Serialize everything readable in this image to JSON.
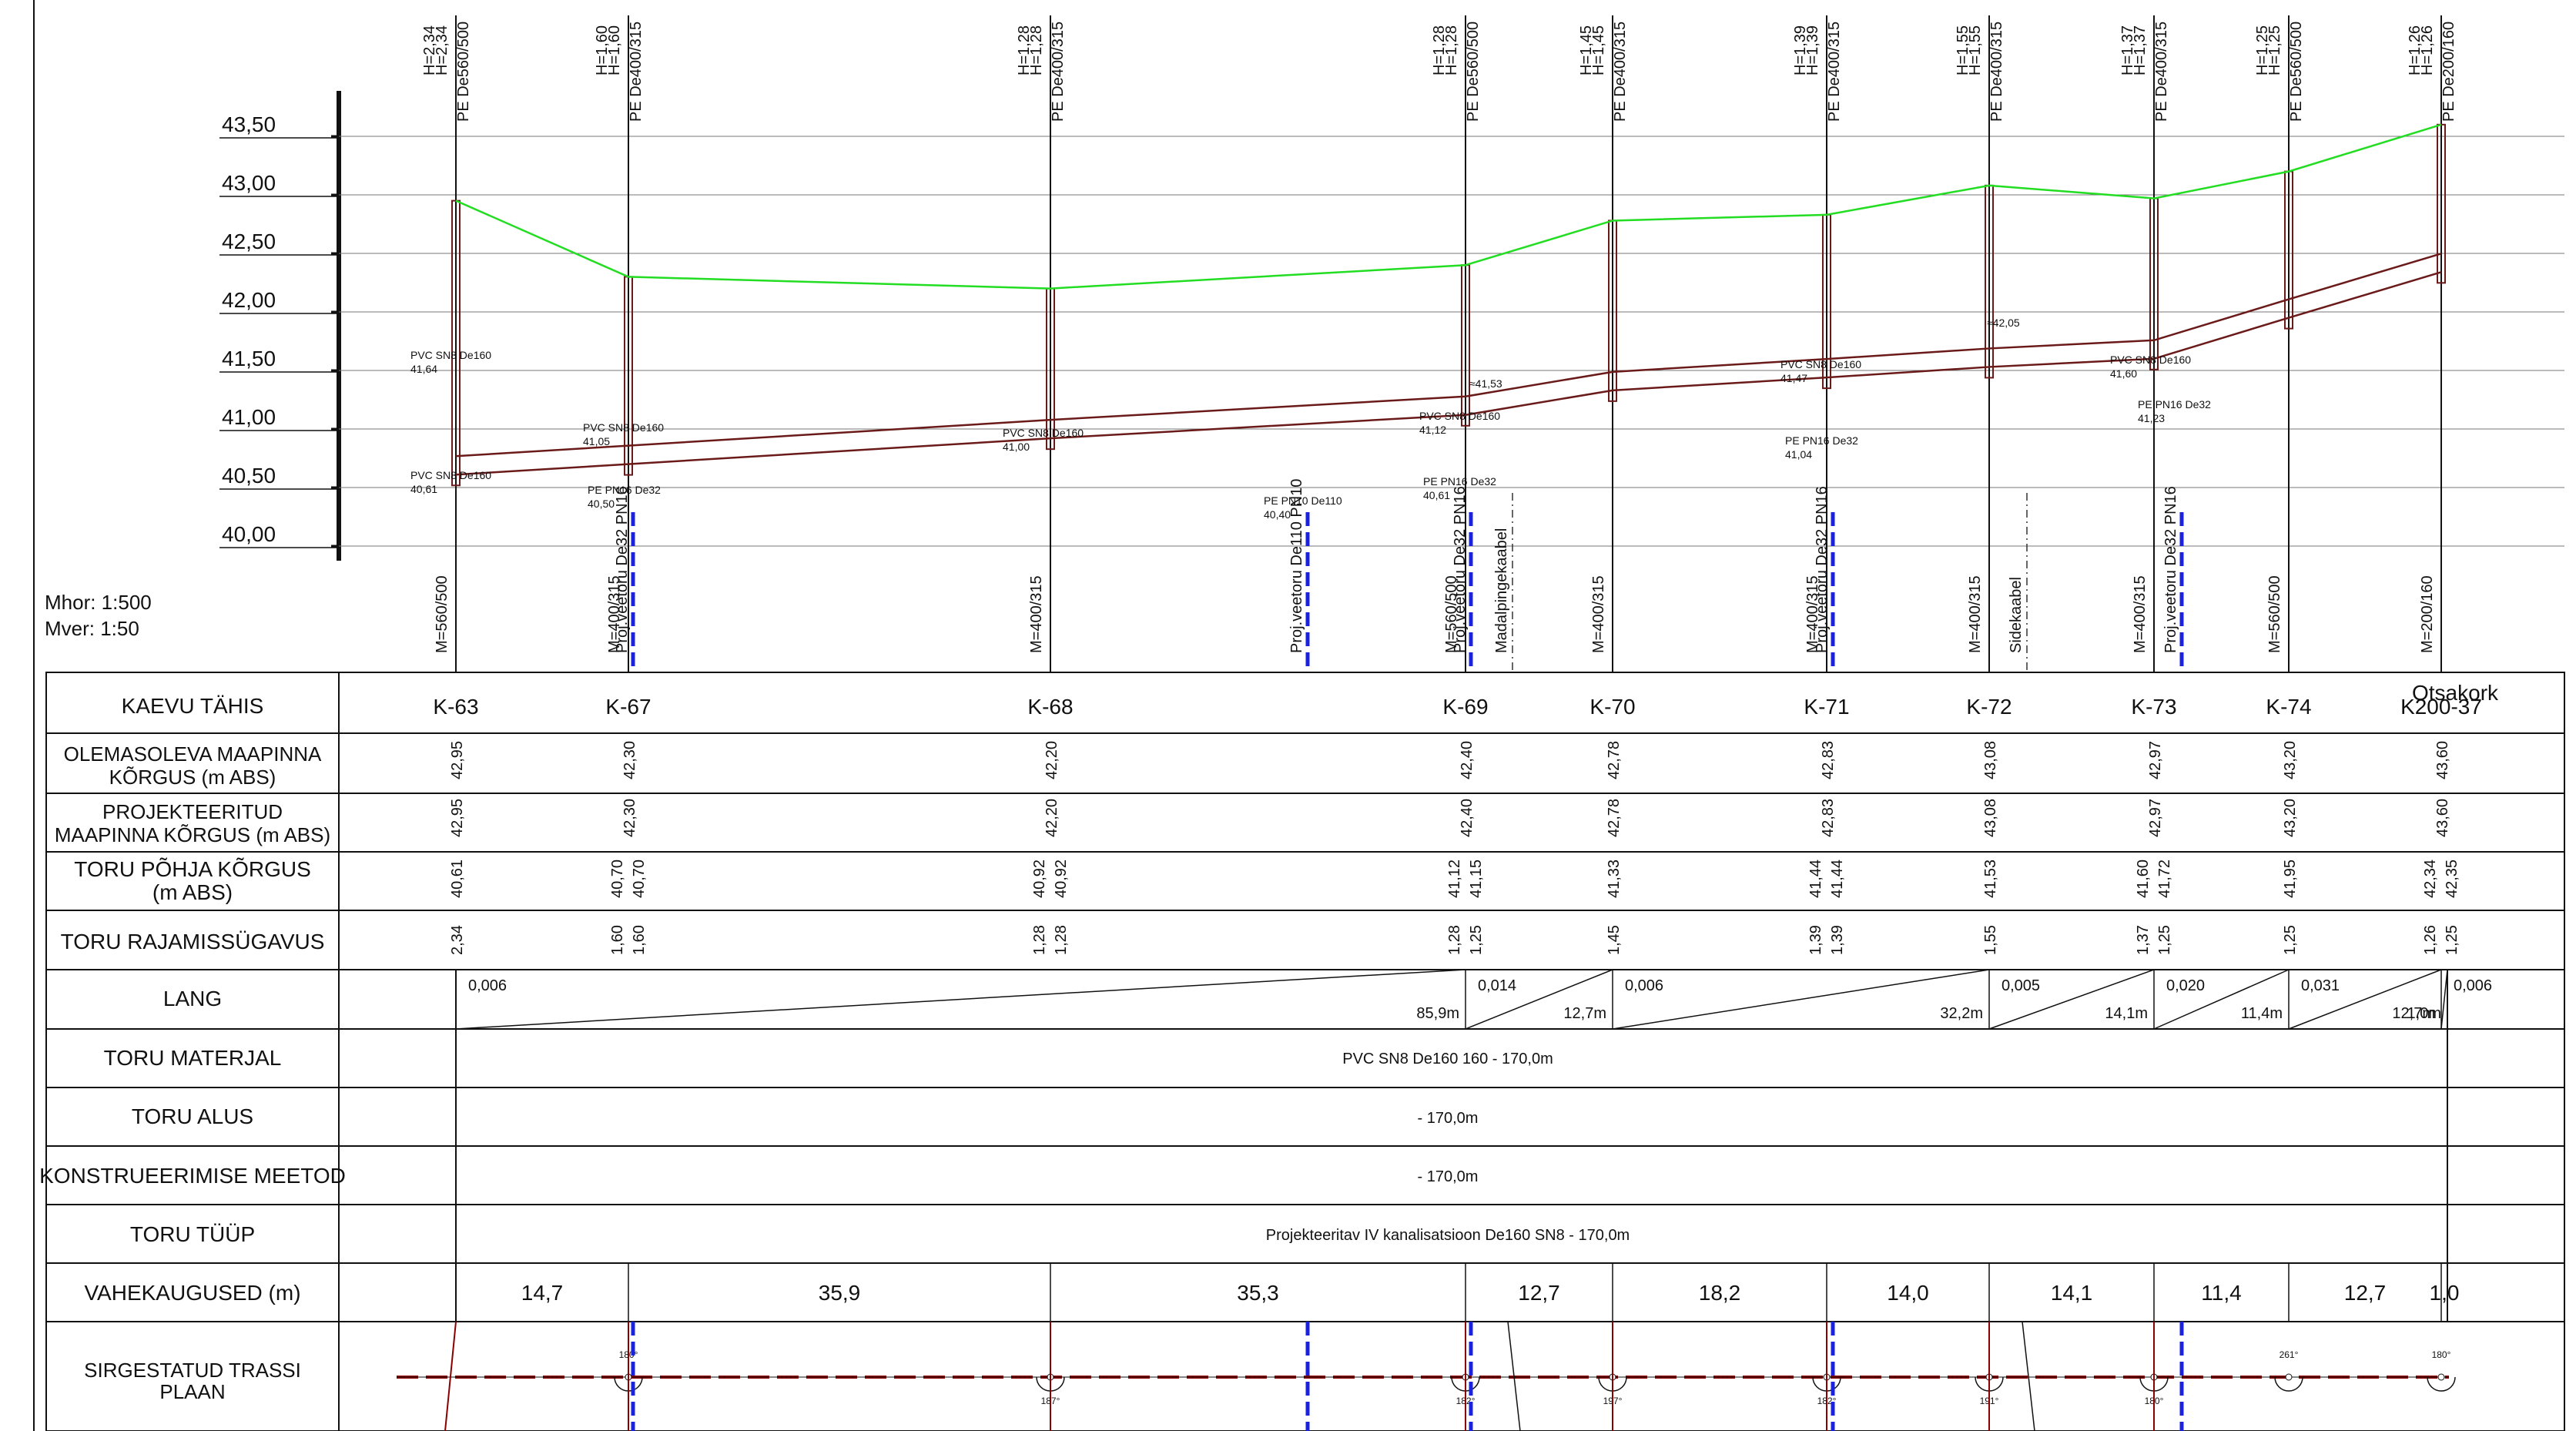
{
  "scale": {
    "horizontal": "Mhor: 1:500",
    "vertical": "Mver: 1:50"
  },
  "elevation_axis": {
    "labels": [
      "43,50",
      "43,00",
      "42,50",
      "42,00",
      "41,50",
      "41,00",
      "40,50",
      "40,00"
    ],
    "values": [
      43.5,
      43.0,
      42.5,
      42.0,
      41.5,
      41.0,
      40.5,
      40.0
    ]
  },
  "table_rows": {
    "kaevu_tahis": "KAEVU TÄHIS",
    "olemasoleva": "OLEMASOLEVA MAAPINNA KÕRGUS (m ABS)",
    "projekteeritud": "PROJEKTEERITUD MAAPINNA KÕRGUS (m ABS)",
    "toru_pohja": "TORU PÕHJA KÕRGUS (m ABS)",
    "rajamissugavus": "TORU RAJAMISSÜGAVUS",
    "lang": "LANG",
    "toru_materjal": "TORU MATERJAL",
    "toru_alus": "TORU ALUS",
    "konstrueerimise": "KONSTRUEERIMISE MEETOD",
    "toru_tuup": "TORU TÜÜP",
    "vahekaugused": "VAHEKAUGUSED (m)",
    "sirgestatud": "SIRGESTATUD TRASSI PLAAN"
  },
  "wells": [
    {
      "name": "K-63",
      "pipe_label": "PE De560/500",
      "h_top": "H=2,34",
      "h_bot": "H=2,34",
      "m_label": "M=560/500",
      "ground": "42,95",
      "proj_ground": "42,95",
      "invert": [
        "40,61"
      ],
      "depth": [
        "2,34"
      ]
    },
    {
      "name": "K-67",
      "pipe_label": "PE De400/315",
      "h_top": "H=1,60",
      "h_bot": "H=1,60",
      "m_label": "M=400/315",
      "ground": "42,30",
      "proj_ground": "42,30",
      "invert": [
        "40,70",
        "40,70"
      ],
      "depth": [
        "1,60",
        "1,60"
      ]
    },
    {
      "name": "K-68",
      "pipe_label": "PE De400/315",
      "h_top": "H=1,28",
      "h_bot": "H=1,28",
      "m_label": "M=400/315",
      "ground": "42,20",
      "proj_ground": "42,20",
      "invert": [
        "40,92",
        "40,92"
      ],
      "depth": [
        "1,28",
        "1,28"
      ]
    },
    {
      "name": "K-69",
      "pipe_label": "PE De560/500",
      "h_top": "H=1,28",
      "h_bot": "H=1,28",
      "m_label": "M=560/500",
      "ground": "42,40",
      "proj_ground": "42,40",
      "invert": [
        "41,12",
        "41,15"
      ],
      "depth": [
        "1,28",
        "1,25"
      ]
    },
    {
      "name": "K-70",
      "pipe_label": "PE De400/315",
      "h_top": "H=1,45",
      "h_bot": "H=1,45",
      "m_label": "M=400/315",
      "ground": "42,78",
      "proj_ground": "42,78",
      "invert": [
        "41,33"
      ],
      "depth": [
        "1,45"
      ]
    },
    {
      "name": "K-71",
      "pipe_label": "PE De400/315",
      "h_top": "H=1,39",
      "h_bot": "H=1,39",
      "m_label": "M=400/315",
      "ground": "42,83",
      "proj_ground": "42,83",
      "invert": [
        "41,44",
        "41,44"
      ],
      "depth": [
        "1,39",
        "1,39"
      ]
    },
    {
      "name": "K-72",
      "pipe_label": "PE De400/315",
      "h_top": "H=1,55",
      "h_bot": "H=1,55",
      "m_label": "M=400/315",
      "ground": "43,08",
      "proj_ground": "43,08",
      "invert": [
        "41,53"
      ],
      "depth": [
        "1,55"
      ]
    },
    {
      "name": "K-73",
      "pipe_label": "PE De400/315",
      "h_top": "H=1,37",
      "h_bot": "H=1,37",
      "m_label": "M=400/315",
      "ground": "42,97",
      "proj_ground": "42,97",
      "invert": [
        "41,60",
        "41,72"
      ],
      "depth": [
        "1,37",
        "1,25"
      ]
    },
    {
      "name": "K-74",
      "pipe_label": "PE De560/500",
      "h_top": "H=1,25",
      "h_bot": "H=1,25",
      "m_label": "M=560/500",
      "ground": "43,20",
      "proj_ground": "43,20",
      "invert": [
        "41,95"
      ],
      "depth": [
        "1,25"
      ]
    },
    {
      "name": "K200-37",
      "pipe_label": "PE De200/160",
      "h_top": "H=1,26",
      "h_bot": "H=1,26",
      "m_label": "M=200/160",
      "ground": "43,60",
      "proj_ground": "43,60",
      "invert": [
        "42,34",
        "42,35"
      ],
      "depth": [
        "1,26",
        "1,25"
      ]
    }
  ],
  "end_label": "Otsakork",
  "lang_segments": [
    {
      "slope": "0,006",
      "length": "85,9m"
    },
    {
      "slope": "0,014",
      "length": "12,7m"
    },
    {
      "slope": "0,006",
      "length": "32,2m"
    },
    {
      "slope": "0,005",
      "length": "14,1m"
    },
    {
      "slope": "0,020",
      "length": "11,4m"
    },
    {
      "slope": "0,031",
      "length": "12,7m"
    },
    {
      "slope": "0,006",
      "length": "1,0m"
    }
  ],
  "toru_materjal_value": "PVC SN8 De160 160 - 170,0m",
  "toru_alus_value": "- 170,0m",
  "konstrueerimise_value": "- 170,0m",
  "toru_tuup_value": "Projekteeritav IV kanalisatsioon De160 SN8 - 170,0m",
  "distances": [
    "14,7",
    "35,9",
    "35,3",
    "12,7",
    "18,2",
    "14,0",
    "14,1",
    "11,4",
    "12,7",
    "1,0"
  ],
  "crossings": [
    {
      "label": "Proj.veetoru De32 PN16",
      "kind": "water"
    },
    {
      "label": "Proj.veetoru De110 PN10",
      "kind": "water"
    },
    {
      "label": "Proj.veetoru De32 PN16",
      "kind": "water"
    },
    {
      "label": "Madalpingekaabel",
      "kind": "cable"
    },
    {
      "label": "Proj.veetoru De32 PN16",
      "kind": "water"
    },
    {
      "label": "Sidekaabel",
      "kind": "cable"
    },
    {
      "label": "Proj.veetoru De32 PN16",
      "kind": "water"
    }
  ],
  "profile_notes": [
    {
      "text": "PVC SN8 De160",
      "value": "41,64"
    },
    {
      "text": "PVC SN8 De160",
      "value": "40,61"
    },
    {
      "text": "PVC SN8 De160",
      "value": "41,05"
    },
    {
      "text": "PE PN16 De32",
      "value": "40,50"
    },
    {
      "text": "PVC SN8 De160",
      "value": "41,00"
    },
    {
      "text": "PE PN10 De110",
      "value": "40,40"
    },
    {
      "text": "PVC SN8 De160",
      "value": "41,12"
    },
    {
      "text": "≈41,53",
      "value": ""
    },
    {
      "text": "PE PN16 De32",
      "value": "40,61"
    },
    {
      "text": "PVC SN8 De160",
      "value": "41,47"
    },
    {
      "text": "PE PN16 De32",
      "value": "41,04"
    },
    {
      "text": "≈42,05",
      "value": ""
    },
    {
      "text": "PVC SN8 De160",
      "value": "41,60"
    },
    {
      "text": "PE PN16 De32",
      "value": "41,23"
    }
  ],
  "plan_angles": [
    "180°",
    "187°",
    "182°",
    "197°",
    "182°",
    "191°",
    "180°",
    "261°",
    "180°"
  ],
  "colors": {
    "ground_line": "#22dd22",
    "pipe_line": "#6b1a1a",
    "water_pipe": "#1a22dd",
    "grid": "#555555",
    "plan_axis": "#8b0000"
  }
}
